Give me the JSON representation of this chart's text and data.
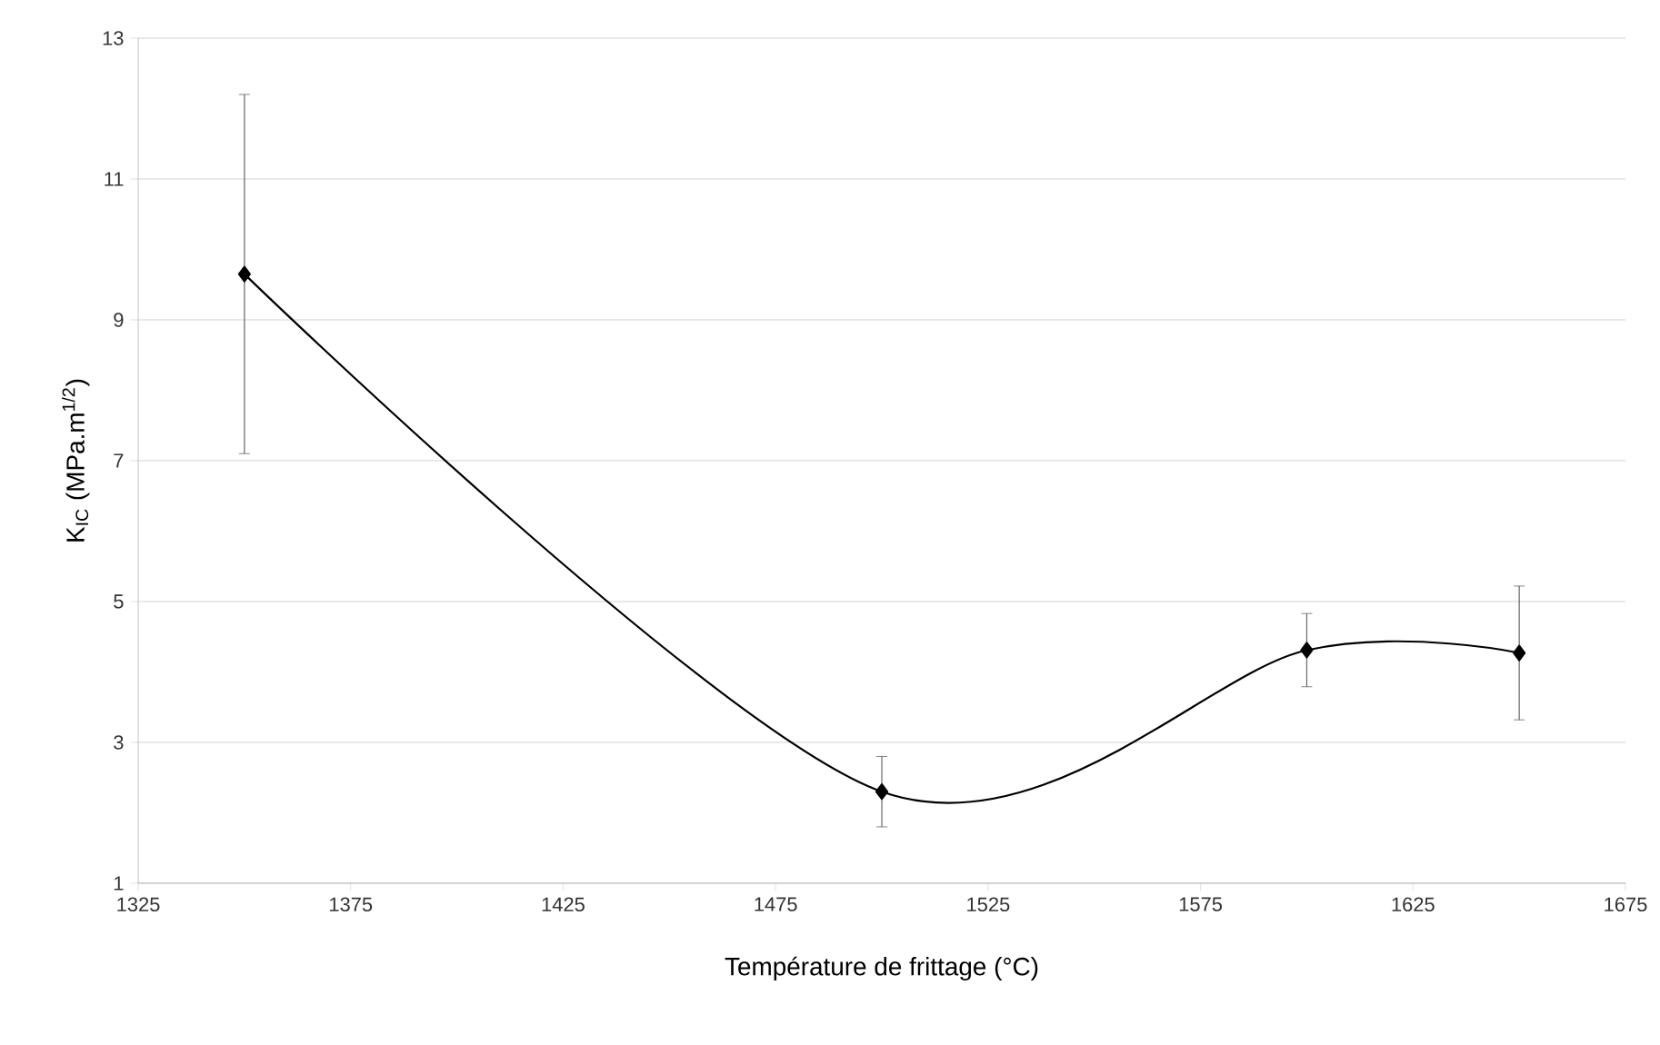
{
  "chart_data": {
    "type": "line",
    "xlabel": "Température de frittage (°C)",
    "ylabel": "K$_{IC}$ (MPa.m$^{1/2}$)",
    "x": [
      1350,
      1500,
      1600,
      1650
    ],
    "series": [
      {
        "color": "#000000",
        "values": [
          9.65,
          2.3,
          4.31,
          4.27
        ],
        "errors": [
          2.55,
          0.5,
          0.52,
          0.95
        ]
      }
    ],
    "xlim": [
      1325,
      1675
    ],
    "xticks": [
      1325,
      1375,
      1425,
      1475,
      1525,
      1575,
      1625,
      1675
    ],
    "ylim": [
      1,
      13
    ],
    "yticks": [
      1,
      3,
      5,
      7,
      9,
      11,
      13
    ],
    "grid": "y",
    "marker": "diamond",
    "line_style": "solid"
  }
}
